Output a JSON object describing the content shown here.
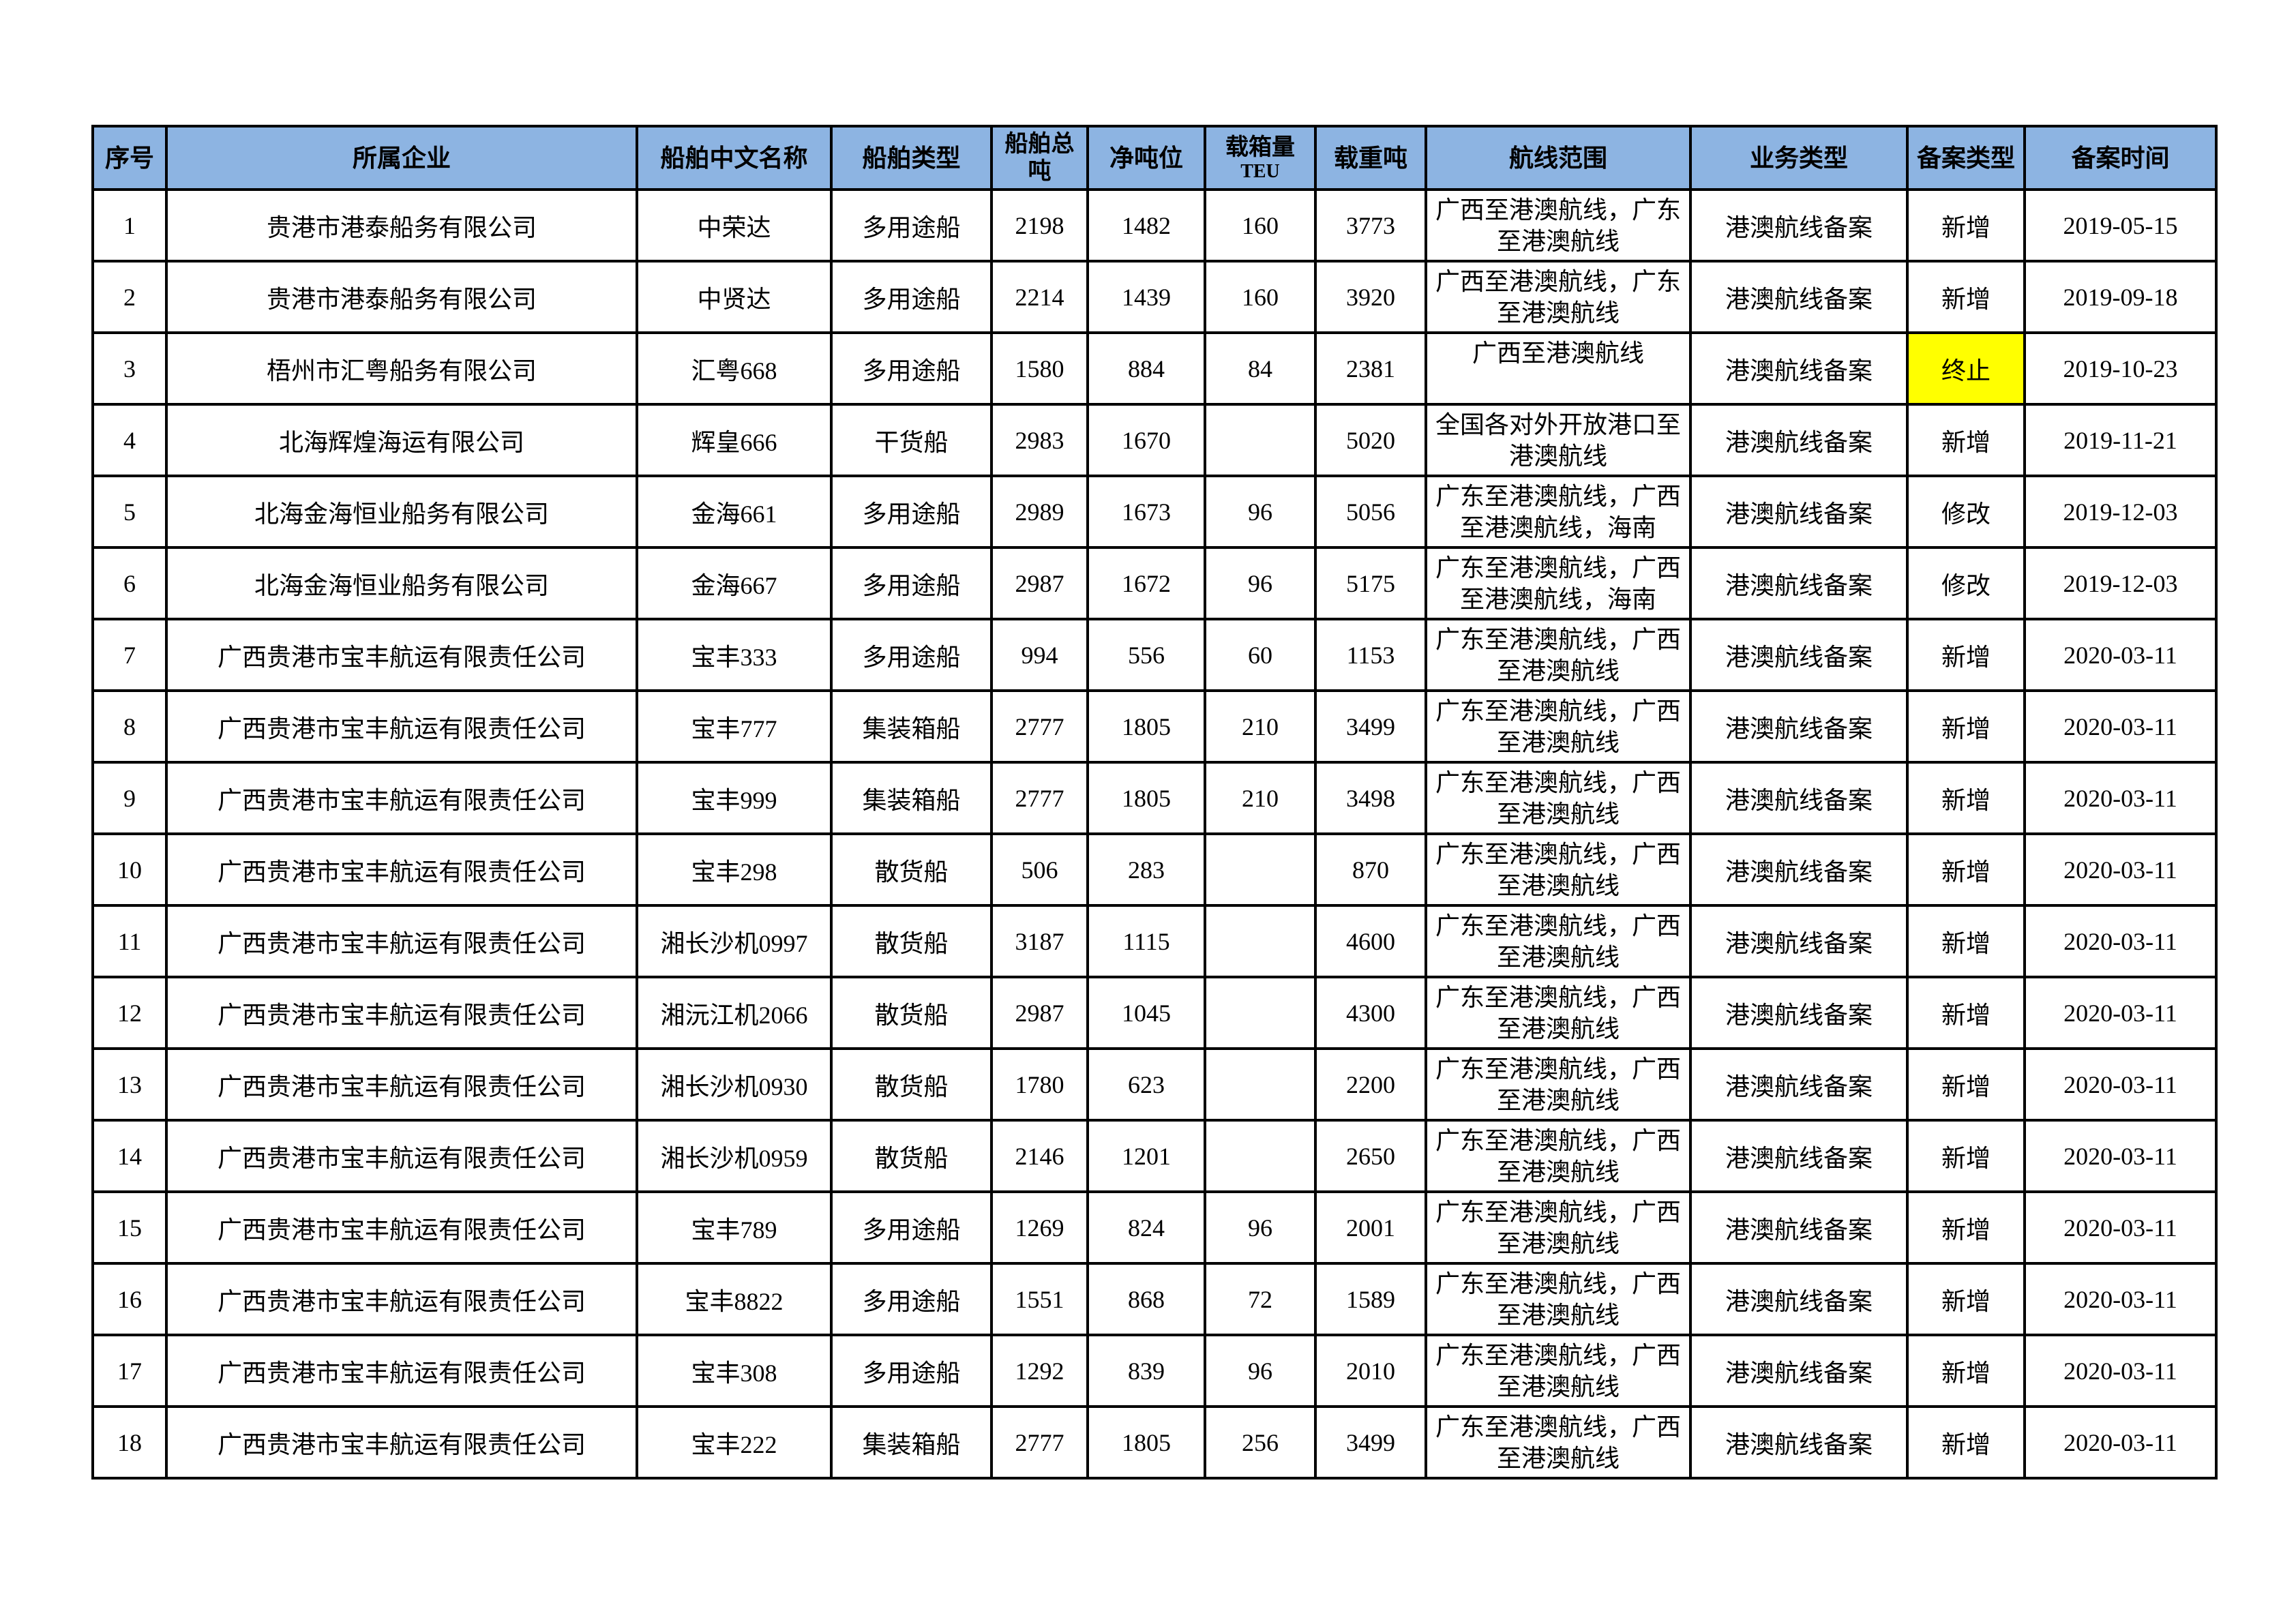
{
  "table": {
    "headers": [
      "序号",
      "所属企业",
      "船舶中文名称",
      "船舶类型",
      "船舶总吨",
      "净吨位",
      "载箱量",
      "载重吨",
      "航线范围",
      "业务类型",
      "备案类型",
      "备案时间"
    ],
    "header_sub": {
      "teu": "TEU"
    },
    "highlight_color": "#FFFF00",
    "header_color": "#8DB4E2",
    "rows": [
      [
        "1",
        "贵港市港泰船务有限公司",
        "中荣达",
        "多用途船",
        "2198",
        "1482",
        "160",
        "3773",
        "广西至港澳航线，广东至港澳航线",
        "港澳航线备案",
        "新增",
        "2019-05-15"
      ],
      [
        "2",
        "贵港市港泰船务有限公司",
        "中贤达",
        "多用途船",
        "2214",
        "1439",
        "160",
        "3920",
        "广西至港澳航线，广东至港澳航线",
        "港澳航线备案",
        "新增",
        "2019-09-18"
      ],
      [
        "3",
        "梧州市汇粤船务有限公司",
        "汇粤668",
        "多用途船",
        "1580",
        "884",
        "84",
        "2381",
        "广西至港澳航线",
        "港澳航线备案",
        "终止",
        "2019-10-23"
      ],
      [
        "4",
        "北海辉煌海运有限公司",
        "辉皇666",
        "干货船",
        "2983",
        "1670",
        "",
        "5020",
        "全国各对外开放港口至港澳航线",
        "港澳航线备案",
        "新增",
        "2019-11-21"
      ],
      [
        "5",
        "北海金海恒业船务有限公司",
        "金海661",
        "多用途船",
        "2989",
        "1673",
        "96",
        "5056",
        "广东至港澳航线，广西至港澳航线，海南",
        "港澳航线备案",
        "修改",
        "2019-12-03"
      ],
      [
        "6",
        "北海金海恒业船务有限公司",
        "金海667",
        "多用途船",
        "2987",
        "1672",
        "96",
        "5175",
        "广东至港澳航线，广西至港澳航线，海南",
        "港澳航线备案",
        "修改",
        "2019-12-03"
      ],
      [
        "7",
        "广西贵港市宝丰航运有限责任公司",
        "宝丰333",
        "多用途船",
        "994",
        "556",
        "60",
        "1153",
        "广东至港澳航线，广西至港澳航线",
        "港澳航线备案",
        "新增",
        "2020-03-11"
      ],
      [
        "8",
        "广西贵港市宝丰航运有限责任公司",
        "宝丰777",
        "集装箱船",
        "2777",
        "1805",
        "210",
        "3499",
        "广东至港澳航线，广西至港澳航线",
        "港澳航线备案",
        "新增",
        "2020-03-11"
      ],
      [
        "9",
        "广西贵港市宝丰航运有限责任公司",
        "宝丰999",
        "集装箱船",
        "2777",
        "1805",
        "210",
        "3498",
        "广东至港澳航线，广西至港澳航线",
        "港澳航线备案",
        "新增",
        "2020-03-11"
      ],
      [
        "10",
        "广西贵港市宝丰航运有限责任公司",
        "宝丰298",
        "散货船",
        "506",
        "283",
        "",
        "870",
        "广东至港澳航线，广西至港澳航线",
        "港澳航线备案",
        "新增",
        "2020-03-11"
      ],
      [
        "11",
        "广西贵港市宝丰航运有限责任公司",
        "湘长沙机0997",
        "散货船",
        "3187",
        "1115",
        "",
        "4600",
        "广东至港澳航线，广西至港澳航线",
        "港澳航线备案",
        "新增",
        "2020-03-11"
      ],
      [
        "12",
        "广西贵港市宝丰航运有限责任公司",
        "湘沅江机2066",
        "散货船",
        "2987",
        "1045",
        "",
        "4300",
        "广东至港澳航线，广西至港澳航线",
        "港澳航线备案",
        "新增",
        "2020-03-11"
      ],
      [
        "13",
        "广西贵港市宝丰航运有限责任公司",
        "湘长沙机0930",
        "散货船",
        "1780",
        "623",
        "",
        "2200",
        "广东至港澳航线，广西至港澳航线",
        "港澳航线备案",
        "新增",
        "2020-03-11"
      ],
      [
        "14",
        "广西贵港市宝丰航运有限责任公司",
        "湘长沙机0959",
        "散货船",
        "2146",
        "1201",
        "",
        "2650",
        "广东至港澳航线，广西至港澳航线",
        "港澳航线备案",
        "新增",
        "2020-03-11"
      ],
      [
        "15",
        "广西贵港市宝丰航运有限责任公司",
        "宝丰789",
        "多用途船",
        "1269",
        "824",
        "96",
        "2001",
        "广东至港澳航线，广西至港澳航线",
        "港澳航线备案",
        "新增",
        "2020-03-11"
      ],
      [
        "16",
        "广西贵港市宝丰航运有限责任公司",
        "宝丰8822",
        "多用途船",
        "1551",
        "868",
        "72",
        "1589",
        "广东至港澳航线，广西至港澳航线",
        "港澳航线备案",
        "新增",
        "2020-03-11"
      ],
      [
        "17",
        "广西贵港市宝丰航运有限责任公司",
        "宝丰308",
        "多用途船",
        "1292",
        "839",
        "96",
        "2010",
        "广东至港澳航线，广西至港澳航线",
        "港澳航线备案",
        "新增",
        "2020-03-11"
      ],
      [
        "18",
        "广西贵港市宝丰航运有限责任公司",
        "宝丰222",
        "集装箱船",
        "2777",
        "1805",
        "256",
        "3499",
        "广东至港澳航线，广西至港澳航线",
        "港澳航线备案",
        "新增",
        "2020-03-11"
      ]
    ],
    "highlighted_cells": [
      {
        "row": 2,
        "col": 10
      }
    ]
  }
}
